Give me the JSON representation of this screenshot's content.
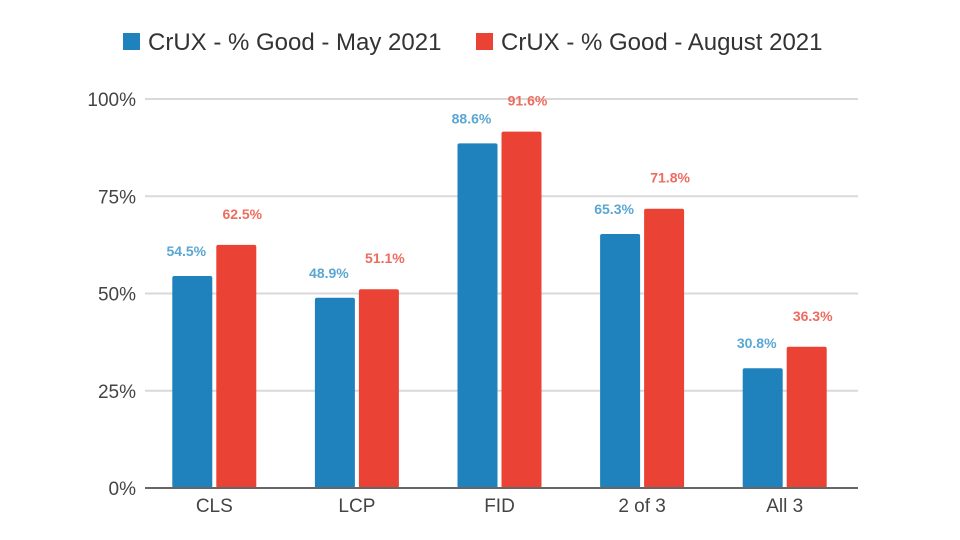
{
  "chart_data": {
    "type": "bar",
    "title": "",
    "xlabel": "",
    "ylabel": "",
    "categories": [
      "CLS",
      "LCP",
      "FID",
      "2 of 3",
      "All 3"
    ],
    "series": [
      {
        "name": "CrUX - % Good - May 2021",
        "color": "#1f82bd",
        "label_color": "#5aa7d3",
        "values": [
          54.5,
          48.9,
          88.6,
          65.3,
          30.8
        ],
        "labels": [
          "54.5%",
          "48.9%",
          "88.6%",
          "65.3%",
          "30.8%"
        ]
      },
      {
        "name": "CrUX - % Good - August 2021",
        "color": "#ea4335",
        "label_color": "#ef6b5e",
        "values": [
          62.5,
          51.1,
          91.6,
          71.8,
          36.3
        ],
        "labels": [
          "62.5%",
          "51.1%",
          "91.6%",
          "71.8%",
          "36.3%"
        ]
      }
    ],
    "ylim": [
      0,
      100
    ],
    "yticks": [
      0,
      25,
      50,
      75,
      100
    ],
    "ytick_labels": [
      "0%",
      "25%",
      "50%",
      "75%",
      "100%"
    ],
    "grid": true,
    "legend": "top"
  }
}
